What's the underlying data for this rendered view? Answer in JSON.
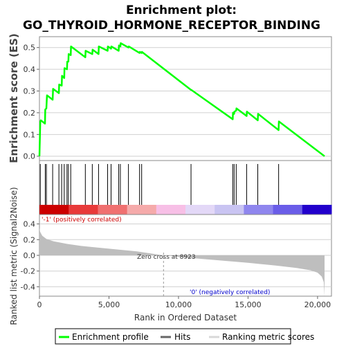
{
  "title_line1": "Enrichment plot:",
  "title_line2": "GO_THYROID_HORMONE_RECEPTOR_BINDING",
  "chart_data": [
    {
      "type": "line",
      "panel": "enrichment",
      "ylabel": "Enrichment score (ES)",
      "ylim": [
        -0.02,
        0.55
      ],
      "yticks": [
        "0.0",
        "0.1",
        "0.2",
        "0.3",
        "0.4",
        "0.5"
      ],
      "grid": true,
      "series": [
        {
          "name": "Enrichment profile",
          "color": "#00ff00",
          "x": [
            0,
            60,
            100,
            400,
            420,
            500,
            540,
            950,
            980,
            1400,
            1420,
            1600,
            1620,
            1780,
            1800,
            1980,
            2000,
            2080,
            2100,
            2250,
            2270,
            3300,
            3320,
            3800,
            3820,
            4250,
            4270,
            4900,
            4920,
            5150,
            5170,
            5700,
            5720,
            5820,
            5840,
            6400,
            6420,
            7200,
            7220,
            7350,
            7370,
            10900,
            10920,
            13900,
            13920,
            14000,
            14020,
            14150,
            14170,
            14900,
            14920,
            15700,
            15720,
            17200,
            17220,
            20500
          ],
          "y": [
            0.0,
            0.16,
            0.165,
            0.15,
            0.215,
            0.22,
            0.28,
            0.26,
            0.31,
            0.29,
            0.33,
            0.325,
            0.37,
            0.36,
            0.405,
            0.4,
            0.435,
            0.435,
            0.47,
            0.465,
            0.505,
            0.455,
            0.485,
            0.47,
            0.49,
            0.47,
            0.505,
            0.485,
            0.505,
            0.495,
            0.505,
            0.485,
            0.51,
            0.505,
            0.52,
            0.5,
            0.505,
            0.475,
            0.48,
            0.475,
            0.48,
            0.305,
            0.305,
            0.17,
            0.2,
            0.195,
            0.205,
            0.21,
            0.22,
            0.185,
            0.205,
            0.165,
            0.195,
            0.12,
            0.16,
            0.0
          ]
        }
      ]
    },
    {
      "type": "hits",
      "panel": "hits",
      "legend_label": "Hits",
      "x": [
        60,
        420,
        500,
        950,
        1400,
        1600,
        1780,
        1980,
        2080,
        2250,
        3300,
        3800,
        4250,
        4900,
        5150,
        5700,
        5820,
        6400,
        7200,
        7350,
        10900,
        13900,
        14000,
        14150,
        14900,
        15700,
        17200
      ]
    },
    {
      "type": "area",
      "panel": "ranked-metric",
      "xlabel": "Rank in Ordered Dataset",
      "ylabel": "Ranked list metric (Signal2Noise)",
      "legend_label": "Ranking metric scores",
      "xlim": [
        0,
        21000
      ],
      "ylim": [
        -0.52,
        0.52
      ],
      "xticks": [
        "0",
        "5,000",
        "10,000",
        "15,000",
        "20,000"
      ],
      "yticks": [
        "0.4",
        "0.2",
        "0.0",
        "-0.2",
        "-0.4"
      ],
      "x": [
        0,
        50,
        200,
        500,
        1000,
        2000,
        3000,
        5000,
        7000,
        8923,
        11000,
        13000,
        15000,
        17000,
        18500,
        19500,
        20000,
        20300,
        20450,
        20500
      ],
      "y": [
        0.35,
        0.3,
        0.25,
        0.21,
        0.18,
        0.145,
        0.12,
        0.085,
        0.05,
        0.0,
        -0.035,
        -0.065,
        -0.095,
        -0.13,
        -0.16,
        -0.19,
        -0.22,
        -0.27,
        -0.34,
        -0.52
      ],
      "annotations": {
        "positive": "'-1' (positively correlated)",
        "negative": "'0' (negatively correlated)",
        "zero_cross": "Zero cross at 8923"
      },
      "zero_cross": 8923
    }
  ],
  "legend": {
    "profile": "Enrichment profile",
    "hits": "Hits",
    "ranking": "Ranking metric scores"
  },
  "colors": {
    "profile": "#00ff00",
    "positive_text": "#cc0000",
    "negative_text": "#0000cc",
    "metric_fill": "#bebebe",
    "grid": "#d0d0d0",
    "heatbar": [
      "#cc0000",
      "#e83a3a",
      "#f07070",
      "#f5aaaa",
      "#f7bfe6",
      "#e3d8f7",
      "#c9c4f2",
      "#8f86ee",
      "#6a5de8",
      "#2200cc"
    ]
  }
}
